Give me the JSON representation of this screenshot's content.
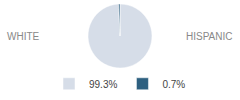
{
  "chart_data": {
    "type": "pie",
    "categories": [
      "WHITE",
      "HISPANIC"
    ],
    "values": [
      99.3,
      0.7
    ],
    "colors": [
      "#d6dde8",
      "#2e6080"
    ],
    "value_labels": [
      "99.3%",
      "0.7%"
    ],
    "legend": "bottom"
  }
}
